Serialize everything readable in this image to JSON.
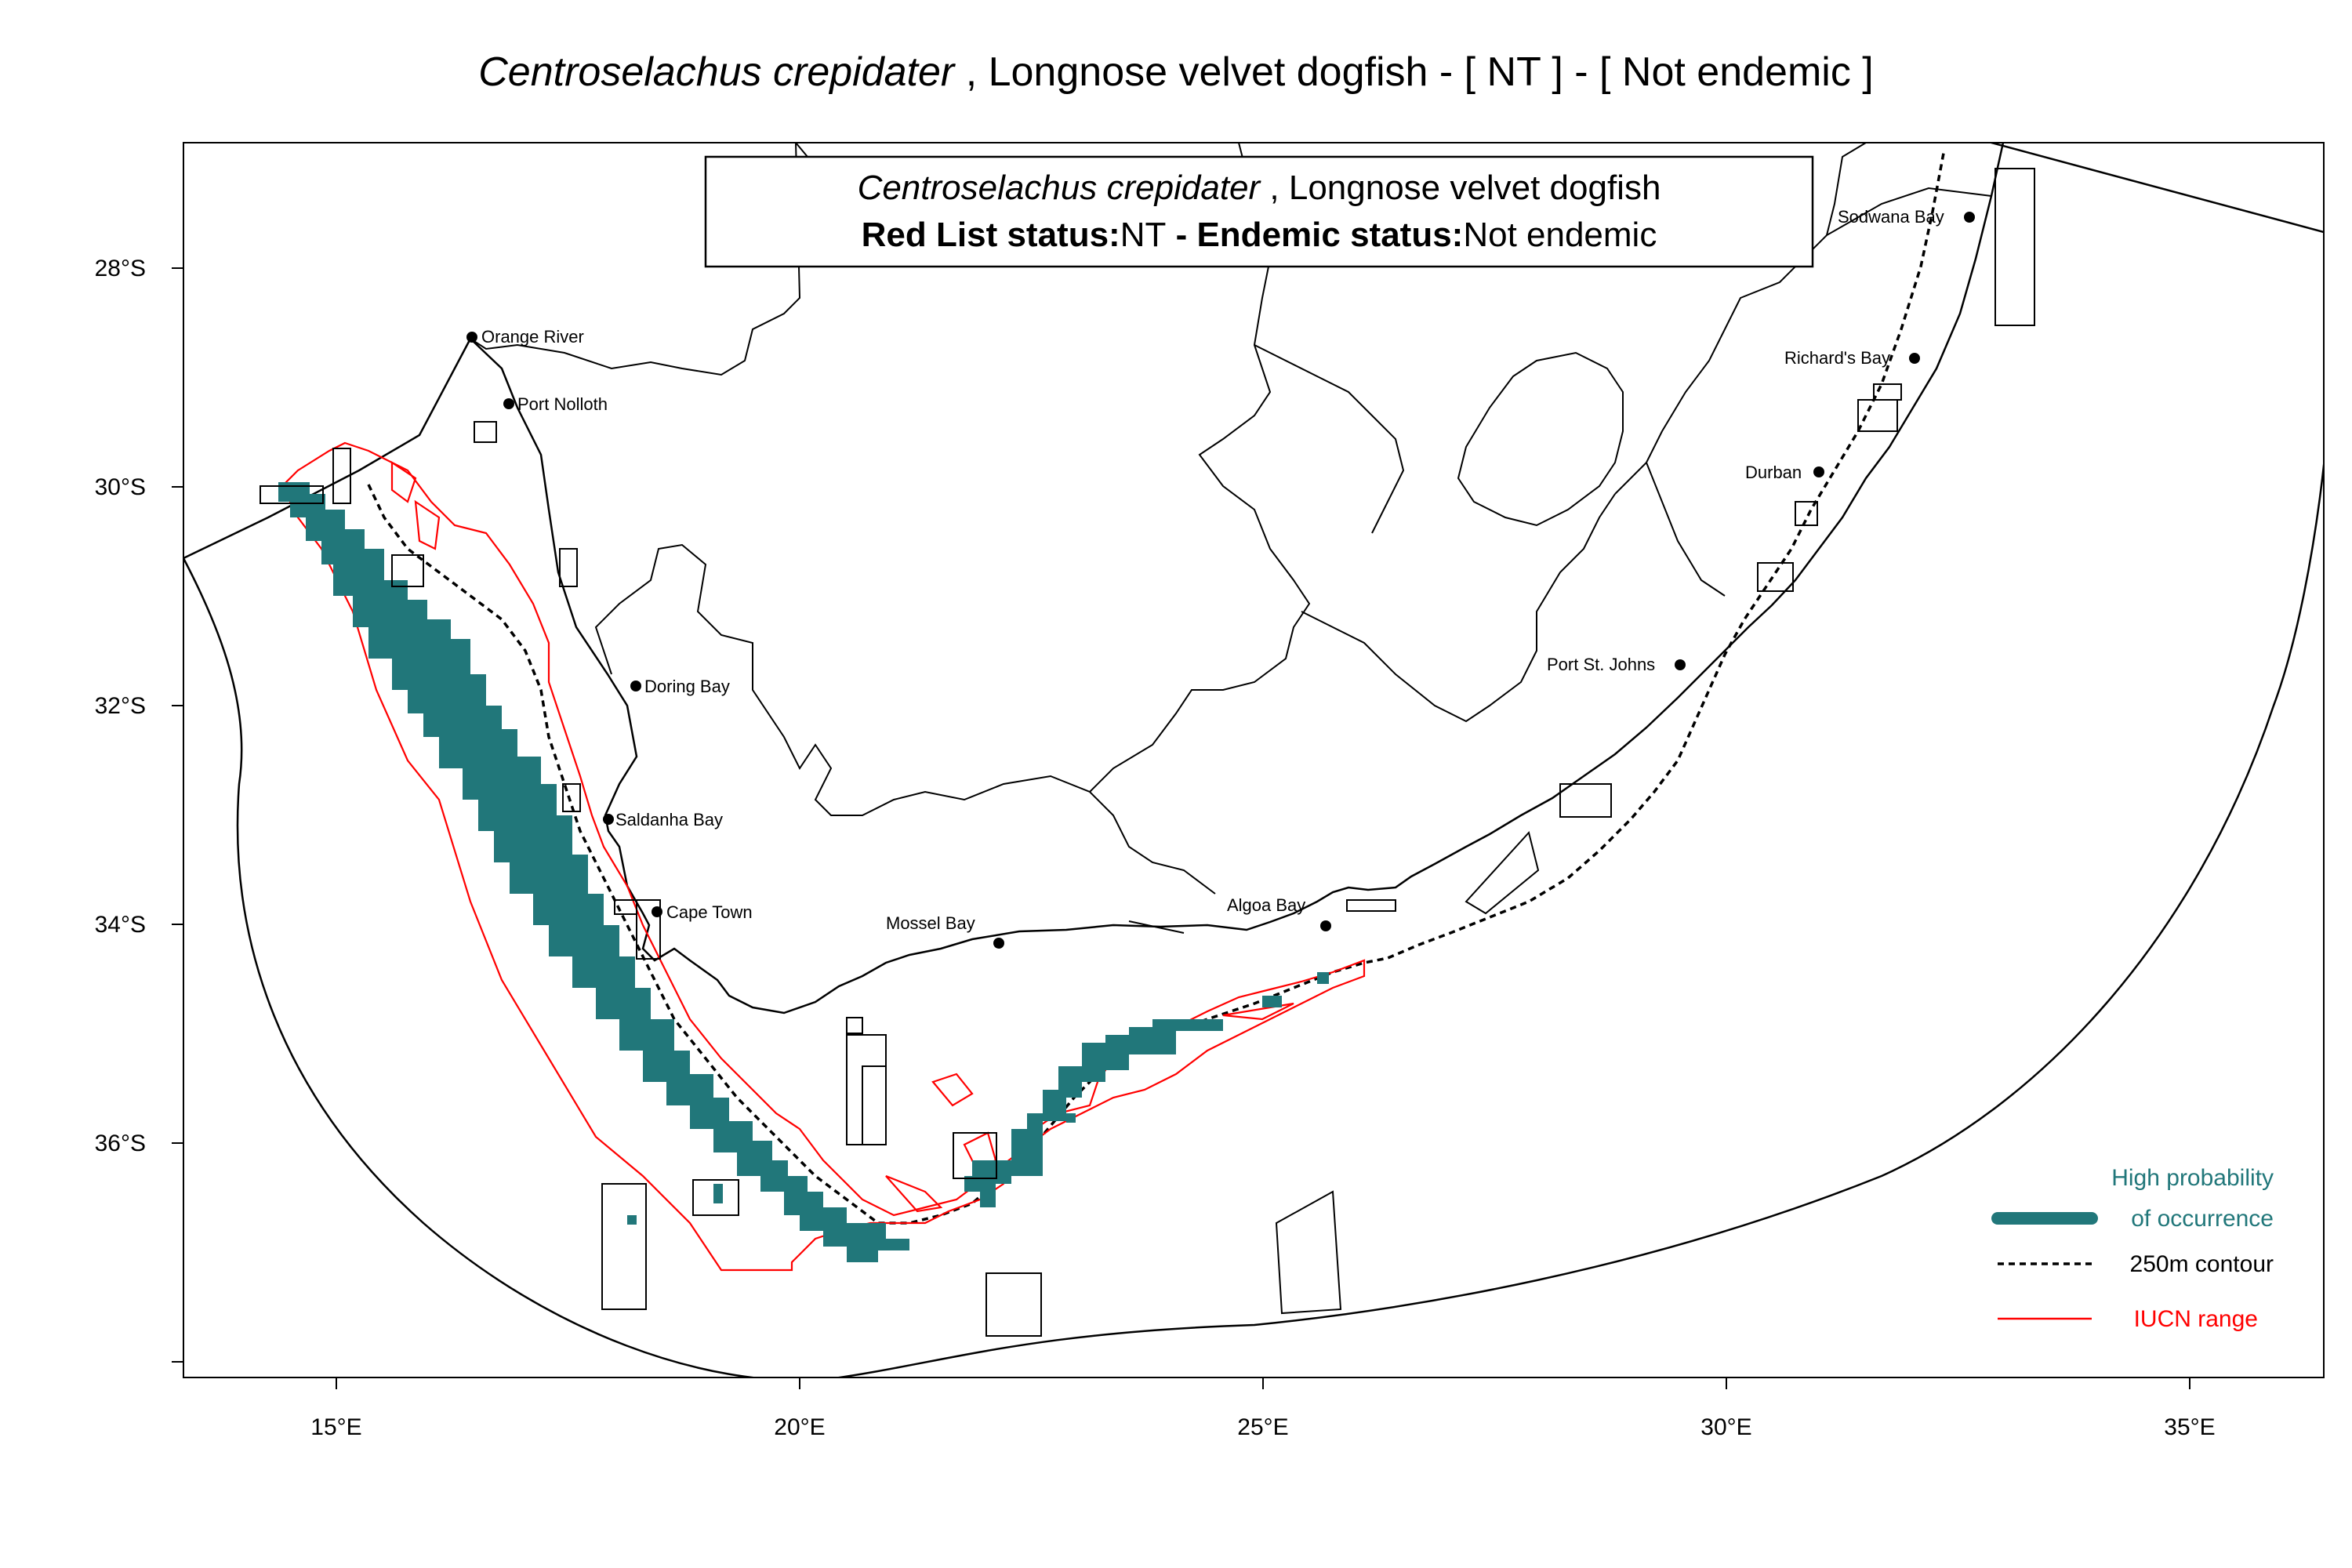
{
  "title": {
    "species": "Centroselachus crepidater",
    "rest": " , Longnose velvet dogfish  - [ NT ] - [ Not endemic ]"
  },
  "info_box": {
    "species": "Centroselachus crepidater",
    "common": " , Longnose velvet dogfish",
    "red_list_label": "Red List status:",
    "red_list_value": "NT",
    "endemic_label": " - Endemic status:",
    "endemic_value": "Not endemic"
  },
  "axes": {
    "x_ticks": [
      "15°E",
      "20°E",
      "25°E",
      "30°E",
      "35°E"
    ],
    "y_ticks": [
      "28°S",
      "30°S",
      "32°S",
      "34°S",
      "36°S"
    ]
  },
  "places": [
    {
      "name": "Orange River"
    },
    {
      "name": "Port Nolloth"
    },
    {
      "name": "Doring Bay"
    },
    {
      "name": "Saldanha Bay"
    },
    {
      "name": "Cape Town"
    },
    {
      "name": "Mossel Bay"
    },
    {
      "name": "Algoa Bay"
    },
    {
      "name": "Port St. Johns"
    },
    {
      "name": "Durban"
    },
    {
      "name": "Richard's Bay"
    },
    {
      "name": "Sodwana Bay"
    }
  ],
  "legend": {
    "high_prob_line1": "High probability",
    "high_prob_line2": "of occurrence",
    "contour": "250m contour",
    "iucn": "IUCN range"
  },
  "colors": {
    "occurrence": "#21777a",
    "iucn": "#ff0000",
    "lines": "#000000"
  }
}
